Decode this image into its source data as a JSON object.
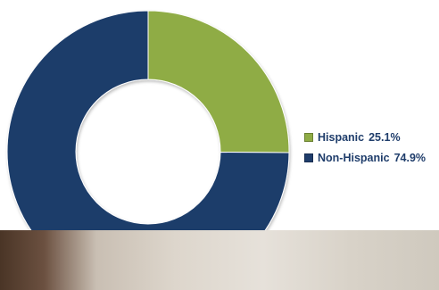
{
  "chart_data": {
    "type": "pie",
    "title": "",
    "categories": [
      "Hispanic",
      "Non-Hispanic"
    ],
    "values": [
      25.1,
      74.9
    ],
    "value_labels": [
      "25.1%",
      "74.9%"
    ],
    "colors": [
      "#8fac45",
      "#1f3d6b"
    ],
    "donut": true,
    "legend_position": "right"
  }
}
